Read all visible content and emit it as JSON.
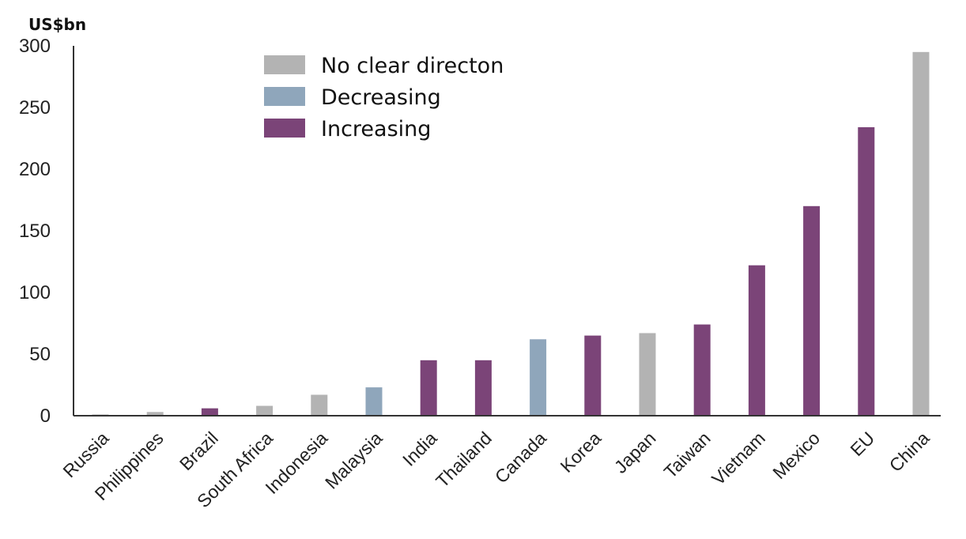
{
  "chart_data": {
    "type": "bar",
    "ylabel": "US$bn",
    "ylim": [
      0,
      300
    ],
    "yticks": [
      0,
      50,
      100,
      150,
      200,
      250,
      300
    ],
    "grid": false,
    "legend_position": "top-center",
    "categories": [
      "Russia",
      "Philippines",
      "Brazil",
      "South Africa",
      "Indonesia",
      "Malaysia",
      "India",
      "Thailand",
      "Canada",
      "Korea",
      "Japan",
      "Taiwan",
      "Vietnam",
      "Mexico",
      "EU",
      "China"
    ],
    "values": [
      1,
      3,
      6,
      8,
      17,
      23,
      45,
      45,
      62,
      65,
      67,
      74,
      122,
      170,
      234,
      295
    ],
    "groups": [
      "No clear directon",
      "No clear directon",
      "Increasing",
      "No clear directon",
      "No clear directon",
      "Decreasing",
      "Increasing",
      "Increasing",
      "Decreasing",
      "Increasing",
      "No clear directon",
      "Increasing",
      "Increasing",
      "Increasing",
      "Increasing",
      "No clear directon"
    ],
    "legend": [
      {
        "name": "No clear directon",
        "color": "#b3b3b3"
      },
      {
        "name": "Decreasing",
        "color": "#8fa6bb"
      },
      {
        "name": "Increasing",
        "color": "#7b4478"
      }
    ]
  }
}
